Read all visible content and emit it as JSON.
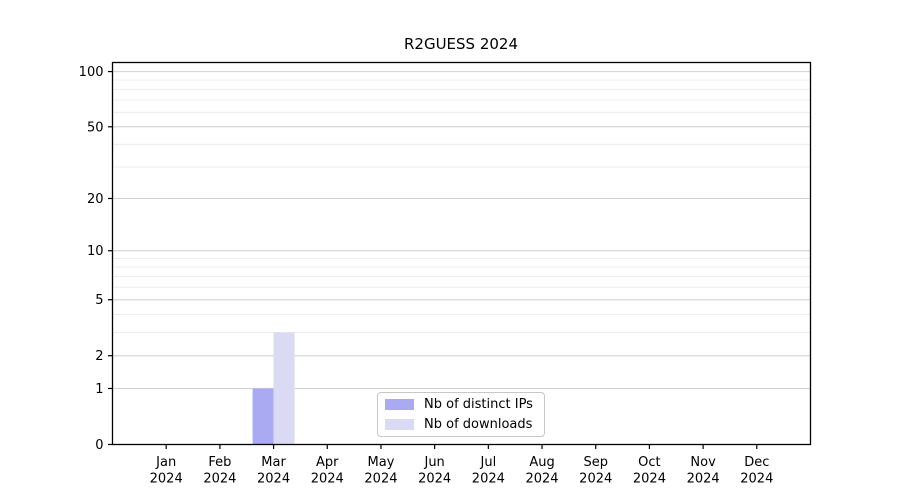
{
  "title": "R2GUESS 2024",
  "legend": {
    "items": [
      {
        "label": "Nb of distinct IPs",
        "color": "#aaaaf3"
      },
      {
        "label": "Nb of downloads",
        "color": "#dadaf5"
      }
    ]
  },
  "chart_data": {
    "type": "bar",
    "title": "R2GUESS 2024",
    "categories": [
      "Jan 2024",
      "Feb 2024",
      "Mar 2024",
      "Apr 2024",
      "May 2024",
      "Jun 2024",
      "Jul 2024",
      "Aug 2024",
      "Sep 2024",
      "Oct 2024",
      "Nov 2024",
      "Dec 2024"
    ],
    "series": [
      {
        "name": "Nb of distinct IPs",
        "color": "#aaaaf3",
        "values": [
          0,
          0,
          1,
          0,
          0,
          0,
          0,
          0,
          0,
          0,
          0,
          0
        ]
      },
      {
        "name": "Nb of downloads",
        "color": "#dadaf5",
        "values": [
          0,
          0,
          3,
          0,
          0,
          0,
          0,
          0,
          0,
          0,
          0,
          0
        ]
      }
    ],
    "xlabel": "",
    "ylabel": "",
    "yscale": "log1p",
    "yticks": [
      0,
      1,
      2,
      5,
      10,
      20,
      50,
      100
    ],
    "minor_gridlines": [
      1,
      2,
      3,
      4,
      5,
      6,
      7,
      8,
      9,
      10,
      20,
      30,
      40,
      50,
      60,
      70,
      80,
      90,
      100
    ],
    "ylim": [
      0,
      112
    ],
    "grid": true,
    "grid_minor_color": "#ececec",
    "grid_major_color": "#d2d2d2",
    "axis_color": "#000000",
    "legend_position": "bottom-center"
  }
}
